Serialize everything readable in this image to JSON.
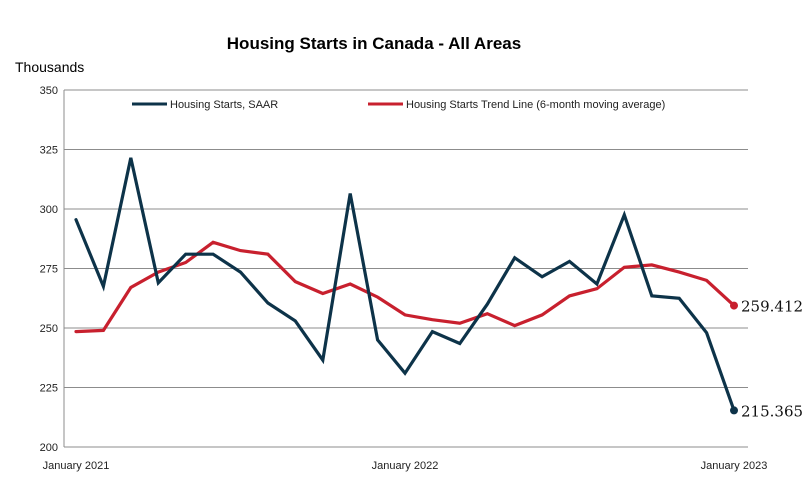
{
  "chart_data": {
    "type": "line",
    "title": "Housing Starts in Canada - All Areas",
    "ylabel": "Thousands",
    "xlabel": "",
    "ylim": [
      200,
      350
    ],
    "yticks": [
      200,
      225,
      250,
      275,
      300,
      325,
      350
    ],
    "x_tick_labels": [
      "January 2021",
      "January 2022",
      "January 2023"
    ],
    "x": [
      "2021-01",
      "2021-02",
      "2021-03",
      "2021-04",
      "2021-05",
      "2021-06",
      "2021-07",
      "2021-08",
      "2021-09",
      "2021-10",
      "2021-11",
      "2021-12",
      "2022-01",
      "2022-02",
      "2022-03",
      "2022-04",
      "2022-05",
      "2022-06",
      "2022-07",
      "2022-08",
      "2022-09",
      "2022-10",
      "2022-11",
      "2022-12",
      "2023-01"
    ],
    "grid": true,
    "legend_position": "top",
    "series": [
      {
        "name": "Housing Starts, SAAR",
        "color": "#0d3349",
        "values": [
          295.5,
          267.5,
          321.5,
          269.0,
          281.0,
          281.0,
          273.5,
          260.5,
          253.0,
          236.5,
          306.5,
          245.0,
          231.0,
          248.5,
          243.5,
          260.0,
          279.5,
          271.5,
          278.0,
          268.5,
          297.5,
          263.5,
          262.5,
          248.0,
          215.365
        ],
        "end_label": "215.365"
      },
      {
        "name": "Housing Starts Trend Line (6-month moving average)",
        "color": "#c8202e",
        "values": [
          248.5,
          249.0,
          267.0,
          273.5,
          277.5,
          286.0,
          282.5,
          281.0,
          269.5,
          264.5,
          268.5,
          263.0,
          255.5,
          253.5,
          252.0,
          256.0,
          251.0,
          255.5,
          263.5,
          266.5,
          275.5,
          276.5,
          273.5,
          270.0,
          259.412
        ],
        "end_label": "259.412"
      }
    ]
  }
}
